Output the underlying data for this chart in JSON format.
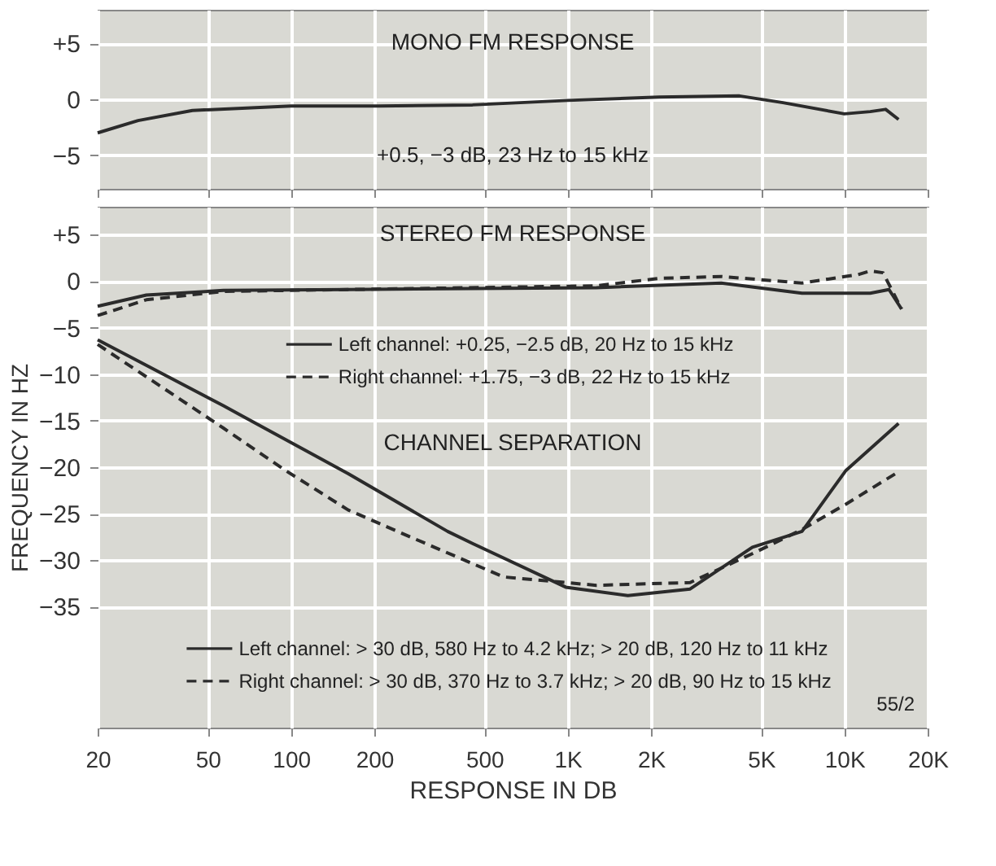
{
  "chart_data": [
    {
      "type": "line",
      "title": "MONO FM RESPONSE",
      "annotations": [
        "+0.5, −3 dB, 23 Hz to 15 kHz"
      ],
      "xlim": [
        20,
        20000
      ],
      "ylim": [
        -8,
        8
      ],
      "xticks": [
        20,
        50,
        100,
        200,
        500,
        1000,
        2000,
        5000,
        10000,
        20000
      ],
      "yticks": [
        {
          "value": 5,
          "label": "+5"
        },
        0,
        -5
      ],
      "tick_labels": "y",
      "log": "x",
      "grid": true,
      "legend": false,
      "series": [
        {
          "color": "#2b2b2b",
          "line_style": "solid",
          "x": [
            20,
            28,
            44,
            100,
            208,
            453,
            1000,
            2140,
            4180,
            6000,
            10000,
            12400,
            14100,
            15700
          ],
          "values": [
            -3.0,
            -1.9,
            -1.0,
            -0.6,
            -0.6,
            -0.5,
            -0.1,
            0.2,
            0.3,
            -0.3,
            -1.3,
            -1.1,
            -0.9,
            -1.8
          ]
        }
      ]
    },
    {
      "type": "line",
      "title": "STEREO FM RESPONSE",
      "annotations": [
        "CHANNEL SEPARATION",
        "55/2"
      ],
      "xlabel": "RESPONSE IN DB",
      "ylabel": "FREQUENCY IN HZ",
      "xlim": [
        20,
        20000
      ],
      "ylim": [
        -48,
        8
      ],
      "xticks": [
        20,
        50,
        100,
        200,
        500,
        {
          "value": 1000,
          "label": "1K"
        },
        {
          "value": 2000,
          "label": "2K"
        },
        {
          "value": 5000,
          "label": "5K"
        },
        {
          "value": 10000,
          "label": "10K"
        },
        {
          "value": 20000,
          "label": "20K"
        }
      ],
      "yticks": [
        {
          "value": 5,
          "label": "+5"
        },
        0,
        -5,
        -10,
        -15,
        -20,
        -25,
        -30,
        -35
      ],
      "grid": true,
      "log": "x",
      "legend": "bottom",
      "series": [
        {
          "name": "Left channel: +0.25, −2.5 dB, 20 Hz to 15 kHz",
          "color": "#2b2b2b",
          "line_style": "solid",
          "x": [
            20,
            30,
            57,
            161,
            453,
            1270,
            3590,
            7030,
            12400,
            14500,
            16100
          ],
          "values": [
            -2.7,
            -1.5,
            -1.0,
            -0.9,
            -0.8,
            -0.7,
            -0.2,
            -1.3,
            -1.3,
            -0.9,
            -3.0
          ]
        },
        {
          "name": "Right channel: +1.75, −3 dB, 22 Hz to 15 kHz",
          "color": "#2b2b2b",
          "line_style": "dashed",
          "x": [
            20,
            30,
            57,
            161,
            1270,
            2140,
            3590,
            7030,
            11200,
            12400,
            13800,
            16100
          ],
          "values": [
            -3.7,
            -2.0,
            -1.1,
            -0.9,
            -0.5,
            0.3,
            0.5,
            -0.2,
            0.7,
            1.1,
            0.9,
            -3.0
          ]
        },
        {
          "name": "Left channel: > 30 dB, 580 Hz to 4.2 kHz; > 20 dB, 120 Hz to 11 kHz",
          "color": "#2b2b2b",
          "line_style": "solid",
          "x": [
            20,
            57,
            161,
            368,
            453,
            984,
            1650,
            2770,
            4650,
            7030,
            10100,
            15700
          ],
          "values": [
            -6.3,
            -13.4,
            -20.7,
            -26.9,
            -28.2,
            -32.9,
            -33.8,
            -33.1,
            -28.6,
            -26.9,
            -20.4,
            -15.3
          ]
        },
        {
          "name": "Right channel: > 30 dB, 370 Hz to 3.7 kHz; > 20 dB, 90 Hz to 15 kHz",
          "color": "#2b2b2b",
          "line_style": "dashed",
          "x": [
            20,
            57,
            96,
            161,
            270,
            587,
            1270,
            2770,
            4650,
            7030,
            10100,
            15300
          ],
          "values": [
            -6.8,
            -15.8,
            -20.4,
            -24.6,
            -27.5,
            -31.8,
            -32.7,
            -32.4,
            -29.3,
            -26.7,
            -24.0,
            -20.7
          ]
        }
      ]
    }
  ]
}
